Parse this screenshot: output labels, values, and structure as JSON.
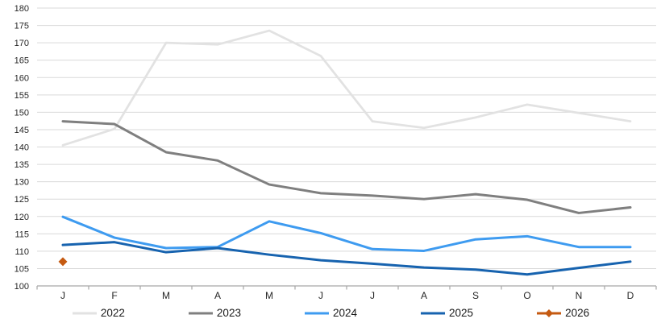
{
  "chart_data": {
    "type": "line",
    "title": "",
    "xlabel": "",
    "ylabel": "",
    "categories": [
      "J",
      "F",
      "M",
      "A",
      "M",
      "J",
      "J",
      "A",
      "S",
      "O",
      "N",
      "D"
    ],
    "y_axis": {
      "min": 100,
      "max": 180,
      "step": 5
    },
    "y_tick_labels": [
      "180",
      "175",
      "170",
      "165",
      "160",
      "155",
      "150",
      "145",
      "140",
      "135",
      "130",
      "125",
      "120",
      "115",
      "110",
      "105",
      "100"
    ],
    "grid": true,
    "legend_position": "bottom",
    "series": [
      {
        "name": "2022",
        "color": "#E2E2E2",
        "marker": "none",
        "values": [
          140.5,
          145.2,
          170.0,
          169.5,
          173.5,
          166.2,
          147.4,
          145.5,
          148.5,
          152.2,
          149.8,
          147.4
        ]
      },
      {
        "name": "2023",
        "color": "#7F7F7F",
        "marker": "none",
        "values": [
          147.4,
          146.6,
          138.5,
          136.1,
          129.2,
          126.7,
          126.0,
          125.0,
          126.4,
          124.8,
          121.0,
          122.6
        ]
      },
      {
        "name": "2024",
        "color": "#3E9BF0",
        "marker": "none",
        "values": [
          119.9,
          113.9,
          110.9,
          111.2,
          118.6,
          115.2,
          110.6,
          110.1,
          113.4,
          114.3,
          111.2,
          111.2
        ]
      },
      {
        "name": "2025",
        "color": "#1763AF",
        "marker": "none",
        "values": [
          111.8,
          112.6,
          109.7,
          110.9,
          109.0,
          107.4,
          106.4,
          105.3,
          104.7,
          103.3,
          105.2,
          107.0
        ]
      },
      {
        "name": "2026",
        "color": "#C55A11",
        "marker": "diamond",
        "values": [
          107.0
        ]
      }
    ]
  },
  "colors": {
    "grid": "#D9D9D9",
    "axis": "#A6A6A6",
    "tick_text": "#262626"
  }
}
